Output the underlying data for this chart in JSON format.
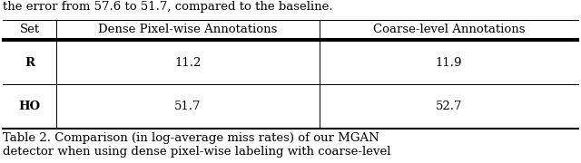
{
  "title_top": "the error from 57.6 to 51.7, compared to the baseline.",
  "col_headers": [
    "Set",
    "Dense Pixel-wise Annotations",
    "Coarse-level Annotations"
  ],
  "rows": [
    [
      "R",
      "11.2",
      "11.9"
    ],
    [
      "HO",
      "51.7",
      "52.7"
    ]
  ],
  "caption_lines": [
    "Table 2. Comparison (in log-average miss rates) of our MGAN",
    "detector when using dense pixel-wise labeling with coarse-level"
  ],
  "background_color": "#ffffff",
  "text_color": "#000000",
  "font_size": 9.5,
  "header_font_size": 9.5
}
